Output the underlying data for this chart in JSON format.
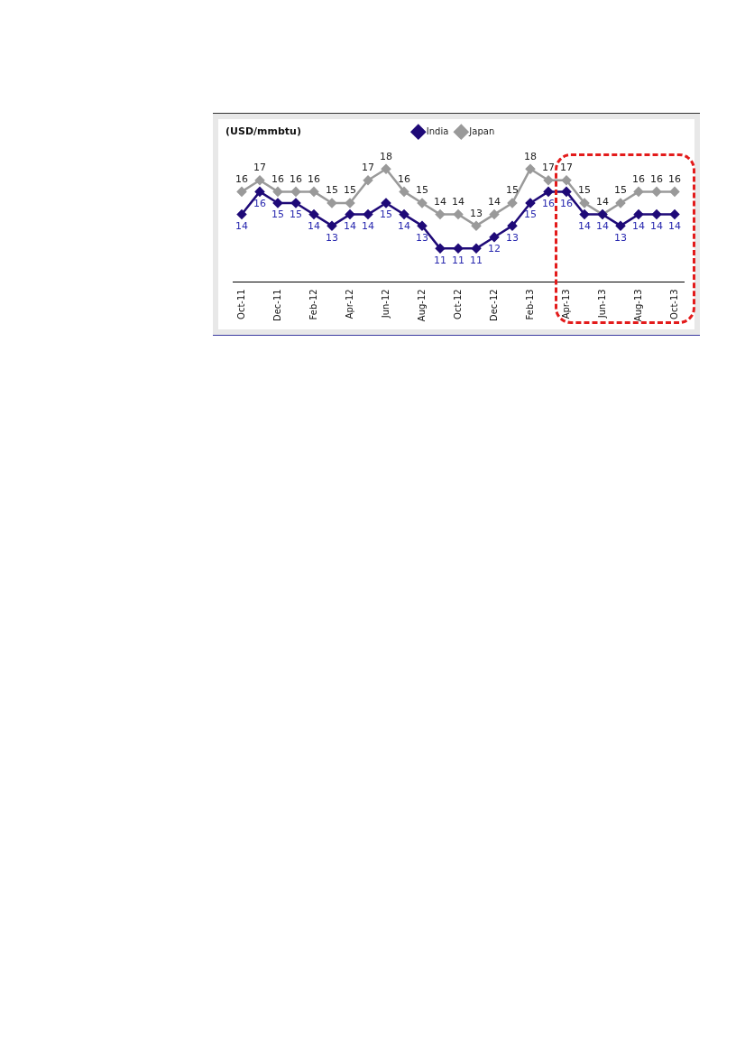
{
  "chart_data": {
    "type": "line",
    "title": "(USD/mmbtu)",
    "categories": [
      "Oct-11",
      null,
      "Dec-11",
      null,
      "Feb-12",
      null,
      "Apr-12",
      null,
      "Jun-12",
      null,
      "Aug-12",
      null,
      "Oct-12",
      null,
      "Dec-12",
      null,
      "Feb-13",
      null,
      "Apr-13",
      null,
      "Jun-13",
      null,
      "Aug-13",
      null,
      "Oct-13"
    ],
    "series": [
      {
        "name": "India",
        "color": "#1f0a78",
        "values": [
          14,
          16,
          15,
          15,
          14,
          13,
          14,
          14,
          15,
          14,
          13,
          11,
          11,
          11,
          12,
          13,
          15,
          16,
          16,
          14,
          14,
          13,
          14,
          14,
          14
        ]
      },
      {
        "name": "Japan",
        "color": "#9a9a9a",
        "values": [
          16,
          17,
          16,
          16,
          16,
          15,
          15,
          17,
          18,
          16,
          15,
          14,
          14,
          13,
          14,
          15,
          18,
          17,
          17,
          15,
          14,
          15,
          16,
          16,
          16
        ]
      }
    ],
    "relative": false,
    "data_labels": true,
    "legend": "top",
    "marker": "diamond",
    "line_style": "solid",
    "grid": false
  }
}
